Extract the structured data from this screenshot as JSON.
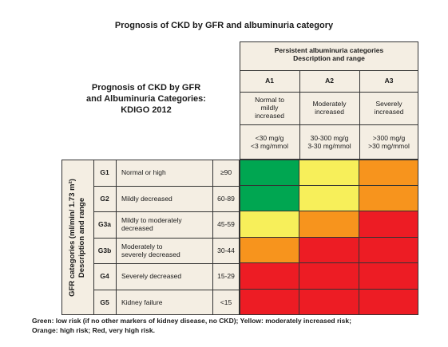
{
  "title": "Prognosis of CKD by GFR and albuminuria category",
  "left_title": [
    "Prognosis of CKD by GFR",
    "and Albuminuria Categories:",
    "KDIGO 2012"
  ],
  "albumin_header": [
    "Persistent albuminuria categories",
    "Description and range"
  ],
  "albumin_cols": [
    {
      "code": "A1",
      "desc": [
        "Normal to",
        "mildly",
        "increased"
      ],
      "range": [
        "<30 mg/g",
        "<3 mg/mmol"
      ]
    },
    {
      "code": "A2",
      "desc": [
        "Moderately",
        "increased"
      ],
      "range": [
        "30-300 mg/g",
        "3-30 mg/mmol"
      ]
    },
    {
      "code": "A3",
      "desc": [
        "Severely",
        "increased"
      ],
      "range": [
        ">300 mg/g",
        ">30 mg/mmol"
      ]
    }
  ],
  "gfr_axis_label": [
    "GFR categories (ml/min/ 1.73 m²)",
    "Description and range"
  ],
  "gfr_rows": [
    {
      "code": "G1",
      "desc": [
        "Normal or high"
      ],
      "range": "≥90",
      "risk": [
        "green",
        "yellow",
        "orange"
      ]
    },
    {
      "code": "G2",
      "desc": [
        "Mildly decreased"
      ],
      "range": "60-89",
      "risk": [
        "green",
        "yellow",
        "orange"
      ]
    },
    {
      "code": "G3a",
      "desc": [
        "Mildly to moderately",
        "decreased"
      ],
      "range": "45-59",
      "risk": [
        "yellow",
        "orange",
        "red"
      ]
    },
    {
      "code": "G3b",
      "desc": [
        "Moderately to",
        "severely decreased"
      ],
      "range": "30-44",
      "risk": [
        "orange",
        "red",
        "red"
      ]
    },
    {
      "code": "G4",
      "desc": [
        "Severely decreased"
      ],
      "range": "15-29",
      "risk": [
        "red",
        "red",
        "red"
      ]
    },
    {
      "code": "G5",
      "desc": [
        "Kidney failure"
      ],
      "range": "<15",
      "risk": [
        "red",
        "red",
        "red"
      ]
    }
  ],
  "colors": {
    "green": "#00a651",
    "yellow": "#f7ef5a",
    "orange": "#f7941d",
    "red": "#ed1c24",
    "panel": "#f4eee3"
  },
  "footer": [
    "Green: low risk (if no other markers of kidney disease, no CKD); Yellow: moderately increased risk;",
    "Orange: high risk; Red, very high risk."
  ]
}
